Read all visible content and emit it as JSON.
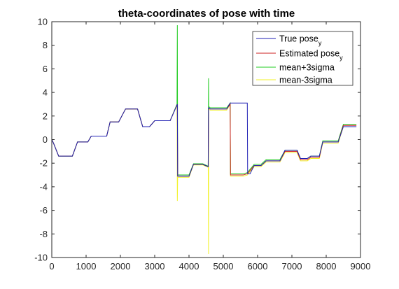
{
  "chart_data": {
    "type": "line",
    "title": "theta-coordinates of pose with time",
    "xlabel": "",
    "ylabel": "",
    "xlim": [
      0,
      9000
    ],
    "ylim": [
      -10,
      10
    ],
    "x_ticks": [
      0,
      1000,
      2000,
      3000,
      4000,
      5000,
      6000,
      7000,
      8000,
      9000
    ],
    "y_ticks": [
      -10,
      -8,
      -6,
      -4,
      -2,
      0,
      2,
      4,
      6,
      8,
      10
    ],
    "grid": false,
    "legend_position": "top-right",
    "legend": [
      {
        "base": "True pose",
        "sub": "y",
        "color": "#1f1fb4"
      },
      {
        "base": "Estimated pose",
        "sub": "y",
        "color": "#cc2020"
      },
      {
        "base": "mean+3sigma",
        "sub": "",
        "color": "#22cc22"
      },
      {
        "base": "mean-3sigma",
        "sub": "",
        "color": "#f2f22a"
      }
    ],
    "series": [
      {
        "name": "True pose y",
        "color": "#1f1fb4",
        "x": [
          0,
          50,
          200,
          600,
          750,
          1050,
          1150,
          1600,
          1700,
          1950,
          2150,
          2500,
          2650,
          2850,
          3000,
          3450,
          3660,
          3670,
          3720,
          4000,
          4130,
          4400,
          4560,
          4570,
          4620,
          5100,
          5200,
          5700,
          5710,
          5780,
          5900,
          6100,
          6250,
          6650,
          6800,
          7150,
          7250,
          7450,
          7550,
          7800,
          7900,
          8350,
          8500,
          8880
        ],
        "y": [
          0,
          -0.3,
          -1.4,
          -1.4,
          -0.2,
          -0.2,
          0.3,
          0.3,
          1.5,
          1.5,
          2.6,
          2.6,
          1.1,
          1.1,
          1.6,
          1.6,
          3.0,
          -3.1,
          -3.1,
          -3.1,
          -2.1,
          -2.1,
          -2.3,
          2.7,
          2.6,
          2.6,
          3.1,
          3.1,
          -2.9,
          -2.9,
          -2.2,
          -2.2,
          -1.8,
          -1.8,
          -0.9,
          -0.9,
          -1.6,
          -1.6,
          -1.4,
          -1.4,
          -0.2,
          -0.2,
          1.1,
          1.1
        ]
      },
      {
        "name": "Estimated pose y",
        "color": "#cc2020",
        "x": [
          0,
          50,
          200,
          600,
          750,
          1050,
          1150,
          1600,
          1700,
          1950,
          2150,
          2500,
          2650,
          2850,
          3000,
          3450,
          3660,
          3670,
          3720,
          4000,
          4130,
          4400,
          4560,
          4570,
          4620,
          5100,
          5200,
          5210,
          5250,
          5580,
          5700,
          5900,
          6100,
          6250,
          6650,
          6800,
          7150,
          7250,
          7450,
          7550,
          7800,
          7900,
          8350,
          8500,
          8880
        ],
        "y": [
          0,
          -0.3,
          -1.4,
          -1.4,
          -0.2,
          -0.2,
          0.3,
          0.3,
          1.5,
          1.5,
          2.6,
          2.6,
          1.1,
          1.1,
          1.6,
          1.6,
          3.0,
          -3.1,
          -3.1,
          -3.1,
          -2.1,
          -2.1,
          -2.3,
          2.7,
          2.6,
          2.6,
          3.0,
          -3.0,
          -3.0,
          -3.0,
          -2.9,
          -2.2,
          -2.2,
          -1.8,
          -1.8,
          -1.0,
          -1.0,
          -1.7,
          -1.7,
          -1.5,
          -1.5,
          -0.2,
          -0.2,
          1.2,
          1.2
        ]
      },
      {
        "name": "mean+3sigma",
        "color": "#22cc22",
        "x": [
          0,
          50,
          200,
          600,
          750,
          1050,
          1150,
          1600,
          1700,
          1950,
          2150,
          2500,
          2650,
          2850,
          3000,
          3450,
          3650,
          3660,
          3670,
          3720,
          4000,
          4130,
          4400,
          4560,
          4570,
          4575,
          4620,
          5100,
          5200,
          5210,
          5250,
          5580,
          5700,
          5900,
          6100,
          6250,
          6650,
          6800,
          7150,
          7250,
          7450,
          7550,
          7800,
          7900,
          8350,
          8500,
          8880
        ],
        "y": [
          0,
          -0.3,
          -1.4,
          -1.4,
          -0.2,
          -0.2,
          0.3,
          0.3,
          1.5,
          1.5,
          2.6,
          2.6,
          1.1,
          1.1,
          1.6,
          1.6,
          3.0,
          9.7,
          -3.0,
          -3.0,
          -3.0,
          -2.05,
          -2.05,
          -2.25,
          5.2,
          2.8,
          2.7,
          2.7,
          3.1,
          -2.9,
          -2.9,
          -2.9,
          -2.8,
          -2.1,
          -2.1,
          -1.7,
          -1.7,
          -0.9,
          -0.9,
          -1.6,
          -1.6,
          -1.4,
          -1.4,
          -0.1,
          -0.1,
          1.3,
          1.3
        ]
      },
      {
        "name": "mean-3sigma",
        "color": "#f2f22a",
        "x": [
          0,
          50,
          200,
          600,
          750,
          1050,
          1150,
          1600,
          1700,
          1950,
          2150,
          2500,
          2650,
          2850,
          3000,
          3450,
          3650,
          3660,
          3670,
          3720,
          4000,
          4130,
          4400,
          4560,
          4570,
          4575,
          4620,
          5100,
          5200,
          5210,
          5250,
          5580,
          5700,
          5900,
          6100,
          6250,
          6650,
          6800,
          7150,
          7250,
          7450,
          7550,
          7800,
          7900,
          8350,
          8500,
          8880
        ],
        "y": [
          0,
          -0.3,
          -1.4,
          -1.4,
          -0.2,
          -0.2,
          0.3,
          0.3,
          1.5,
          1.5,
          2.6,
          2.6,
          1.1,
          1.1,
          1.6,
          1.6,
          3.0,
          -5.2,
          -3.2,
          -3.2,
          -3.2,
          -2.15,
          -2.15,
          -2.35,
          -9.7,
          2.6,
          2.5,
          2.5,
          3.0,
          -3.1,
          -3.1,
          -3.1,
          -3.0,
          -2.3,
          -2.3,
          -1.9,
          -1.9,
          -1.1,
          -1.1,
          -1.8,
          -1.8,
          -1.6,
          -1.6,
          -0.3,
          -0.3,
          1.1,
          1.1
        ]
      }
    ]
  }
}
